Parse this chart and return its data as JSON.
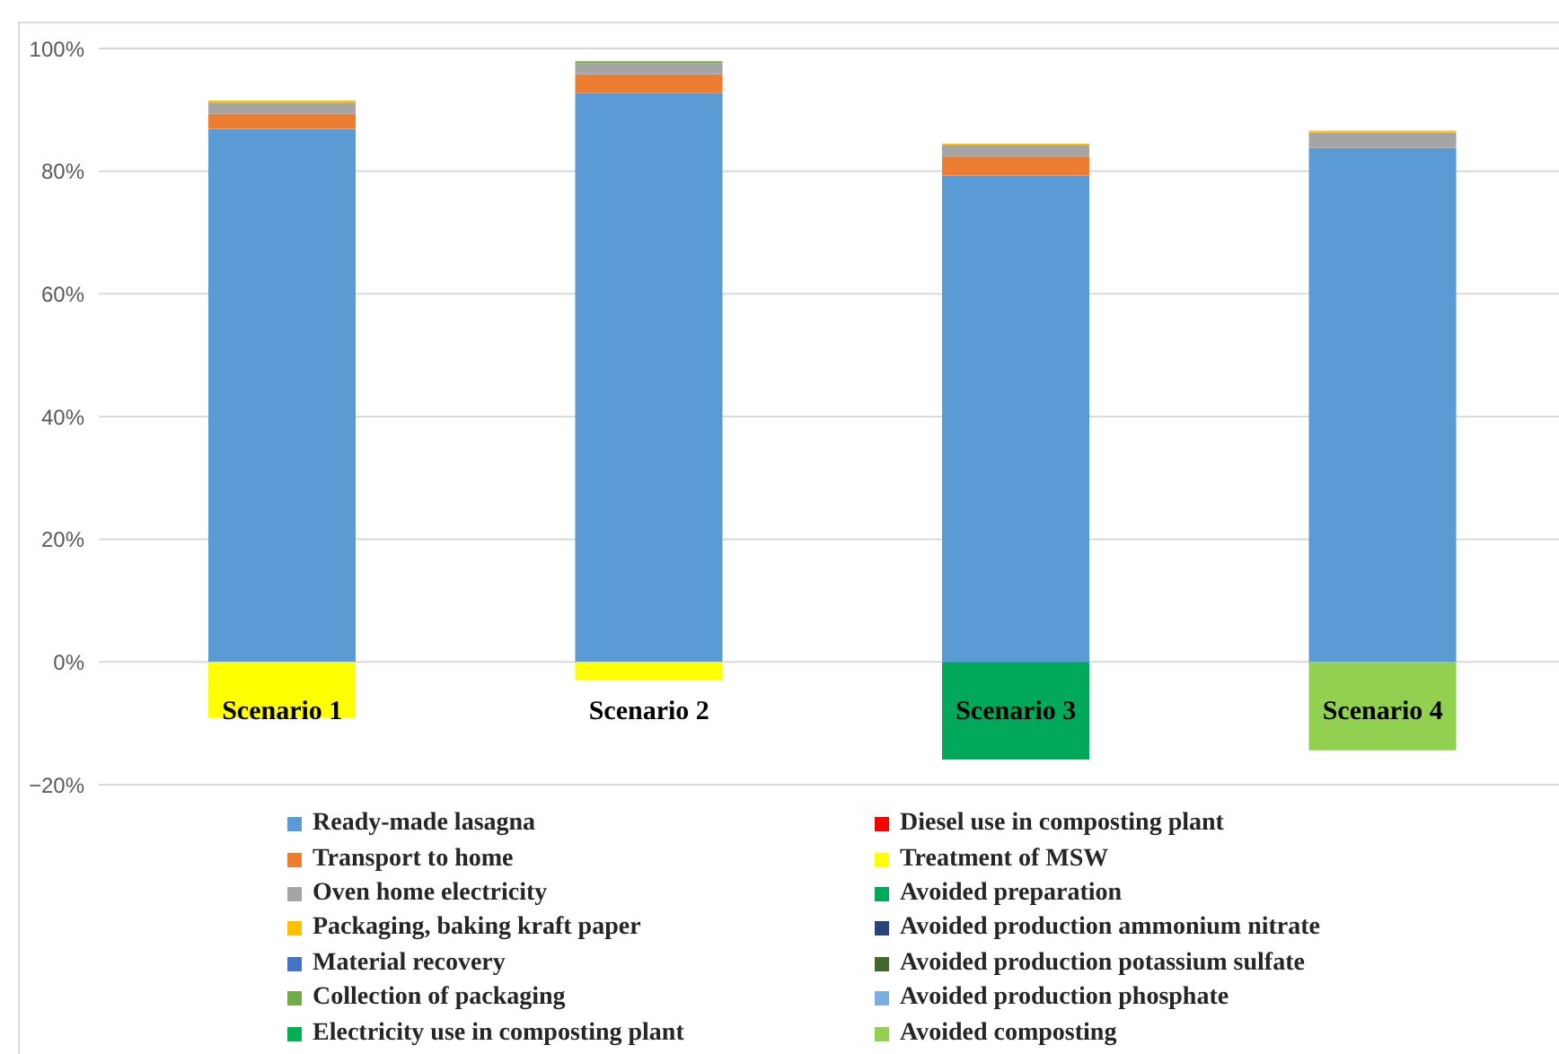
{
  "chart_data": {
    "type": "bar",
    "stacked": true,
    "categories": [
      "Scenario 1",
      "Scenario 2",
      "Scenario 3",
      "Scenario 4"
    ],
    "ylim": [
      -20,
      100
    ],
    "yticks": [
      {
        "value": -20,
        "label": "−20%"
      },
      {
        "value": 0,
        "label": "0%"
      },
      {
        "value": 20,
        "label": "20%"
      },
      {
        "value": 40,
        "label": "40%"
      },
      {
        "value": 60,
        "label": "60%"
      },
      {
        "value": 80,
        "label": "80%"
      },
      {
        "value": 100,
        "label": "100%"
      }
    ],
    "grid": "y",
    "legend": "bottom",
    "series": [
      {
        "name": "Ready-made lasagna",
        "color": "#5b9bd5",
        "values": [
          86.9,
          92.8,
          79.3,
          83.8
        ]
      },
      {
        "name": "Transport to home",
        "color": "#ed7d31",
        "values": [
          2.5,
          3.0,
          3.1,
          null
        ]
      },
      {
        "name": "Oven home electricity",
        "color": "#a5a5a5",
        "values": [
          1.8,
          1.8,
          1.8,
          2.5
        ]
      },
      {
        "name": "Packaging, baking kraft paper",
        "color": "#ffc000",
        "values": [
          0.3,
          null,
          0.3,
          0.3
        ]
      },
      {
        "name": "Material recovery",
        "color": "#4472c4",
        "values": [
          null,
          null,
          null,
          null
        ]
      },
      {
        "name": "Collection of packaging",
        "color": "#70ad47",
        "values": [
          null,
          0.3,
          null,
          null
        ]
      },
      {
        "name": "Electricity use in composting plant",
        "color": "#00b050",
        "values": [
          null,
          null,
          null,
          null
        ]
      },
      {
        "name": "Diesel use in composting plant",
        "color": "#ff0000",
        "values": [
          null,
          null,
          null,
          null
        ]
      },
      {
        "name": "Treatment of MSW",
        "color": "#ffff00",
        "values": [
          -9.1,
          -2.9,
          null,
          null
        ]
      },
      {
        "name": "Avoided preparation",
        "color": "#00a85a",
        "values": [
          null,
          null,
          -15.9,
          null
        ]
      },
      {
        "name": "Avoided production ammonium nitrate",
        "color": "#264478",
        "values": [
          null,
          null,
          null,
          null
        ]
      },
      {
        "name": "Avoided production potassium sulfate",
        "color": "#43682b",
        "values": [
          null,
          null,
          null,
          null
        ]
      },
      {
        "name": "Avoided production phosphate",
        "color": "#7cafdd",
        "values": [
          null,
          null,
          null,
          null
        ]
      },
      {
        "name": "Avoided composting",
        "color": "#92d050",
        "values": [
          null,
          null,
          null,
          -14.4
        ]
      }
    ]
  }
}
